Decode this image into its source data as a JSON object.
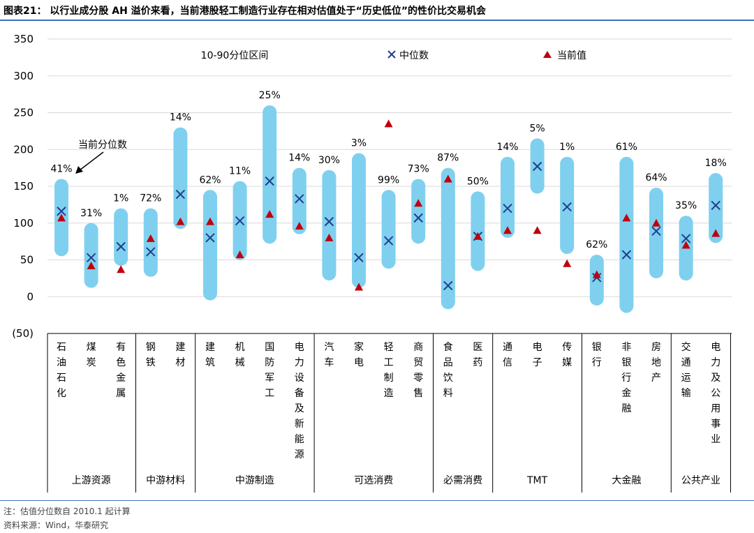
{
  "title": "图表21：  以行业成分股 AH 溢价来看，当前港股轻工制造行业存在相对估值处于“历史低位”的性价比交易机会",
  "notes": {
    "note1": "注：估值分位数自 2010.1 起计算",
    "source": "资料来源：Wind，华泰研究"
  },
  "colors": {
    "bar": "#7fd0ef",
    "median": "#1f3f8c",
    "current": "#c0000c",
    "grid": "#d9d9d9",
    "rule": "#3d73b8"
  },
  "chart_data": {
    "type": "range-bar",
    "y_ticks": [
      "350",
      "300",
      "250",
      "200",
      "150",
      "100",
      "50",
      "0",
      "(50)"
    ],
    "ylim": [
      -50,
      350
    ],
    "legend": {
      "range": "10-90分位区间",
      "median": "中位数",
      "current": "当前值"
    },
    "annotation": "当前分位数",
    "industries": [
      {
        "name": "石油石化",
        "group": "上游资源",
        "low": 55,
        "high": 160,
        "median": 116,
        "current": 107,
        "pct": "41%"
      },
      {
        "name": "煤炭",
        "group": "上游资源",
        "low": 12,
        "high": 100,
        "median": 53,
        "current": 42,
        "pct": "31%"
      },
      {
        "name": "有色金属",
        "group": "上游资源",
        "low": 42,
        "high": 120,
        "median": 68,
        "current": 37,
        "pct": "1%"
      },
      {
        "name": "钢铁",
        "group": "中游材料",
        "low": 27,
        "high": 120,
        "median": 61,
        "current": 79,
        "pct": "72%"
      },
      {
        "name": "建材",
        "group": "中游材料",
        "low": 92,
        "high": 230,
        "median": 139,
        "current": 102,
        "pct": "14%"
      },
      {
        "name": "建筑",
        "group": "中游制造",
        "low": -5,
        "high": 145,
        "median": 80,
        "current": 102,
        "pct": "62%"
      },
      {
        "name": "机械",
        "group": "中游制造",
        "low": 50,
        "high": 157,
        "median": 103,
        "current": 57,
        "pct": "11%"
      },
      {
        "name": "国防军工",
        "group": "中游制造",
        "low": 72,
        "high": 260,
        "median": 157,
        "current": 112,
        "pct": "25%"
      },
      {
        "name": "电力设备及新能源",
        "group": "中游制造",
        "low": 85,
        "high": 175,
        "median": 133,
        "current": 96,
        "pct": "14%"
      },
      {
        "name": "汽车",
        "group": "可选消费",
        "low": 22,
        "high": 172,
        "median": 102,
        "current": 80,
        "pct": "30%"
      },
      {
        "name": "家电",
        "group": "可选消费",
        "low": 12,
        "high": 195,
        "median": 53,
        "current": 13,
        "pct": "3%"
      },
      {
        "name": "轻工制造",
        "group": "可选消费",
        "low": 38,
        "high": 145,
        "median": 76,
        "current": 235,
        "pct": "99%"
      },
      {
        "name": "商贸零售",
        "group": "可选消费",
        "low": 72,
        "high": 160,
        "median": 107,
        "current": 127,
        "pct": "73%"
      },
      {
        "name": "食品饮料",
        "group": "必需消费",
        "low": -17,
        "high": 175,
        "median": 15,
        "current": 160,
        "pct": "87%"
      },
      {
        "name": "医药",
        "group": "必需消费",
        "low": 35,
        "high": 143,
        "median": 82,
        "current": 82,
        "pct": "50%"
      },
      {
        "name": "通信",
        "group": "TMT",
        "low": 80,
        "high": 190,
        "median": 120,
        "current": 90,
        "pct": "14%"
      },
      {
        "name": "电子",
        "group": "TMT",
        "low": 140,
        "high": 215,
        "median": 177,
        "current": 90,
        "pct": "5%"
      },
      {
        "name": "传媒",
        "group": "TMT",
        "low": 58,
        "high": 190,
        "median": 122,
        "current": 45,
        "pct": "1%"
      },
      {
        "name": "银行",
        "group": "大金融",
        "low": -12,
        "high": 57,
        "median": 26,
        "current": 30,
        "pct": "62%"
      },
      {
        "name": "非银行金融",
        "group": "大金融",
        "low": -22,
        "high": 190,
        "median": 57,
        "current": 107,
        "pct": "61%"
      },
      {
        "name": "房地产",
        "group": "大金融",
        "low": 25,
        "high": 148,
        "median": 89,
        "current": 100,
        "pct": "64%"
      },
      {
        "name": "交通运输",
        "group": "公共产业",
        "low": 22,
        "high": 110,
        "median": 79,
        "current": 70,
        "pct": "35%"
      },
      {
        "name": "电力及公用事业",
        "group": "公共产业",
        "low": 73,
        "high": 168,
        "median": 124,
        "current": 86,
        "pct": "18%"
      }
    ],
    "groups": [
      {
        "name": "上游资源",
        "count": 3
      },
      {
        "name": "中游材料",
        "count": 2
      },
      {
        "name": "中游制造",
        "count": 4
      },
      {
        "name": "可选消费",
        "count": 4
      },
      {
        "name": "必需消费",
        "count": 2
      },
      {
        "name": "TMT",
        "count": 3
      },
      {
        "name": "大金融",
        "count": 3
      },
      {
        "name": "公共产业",
        "count": 2
      }
    ]
  }
}
